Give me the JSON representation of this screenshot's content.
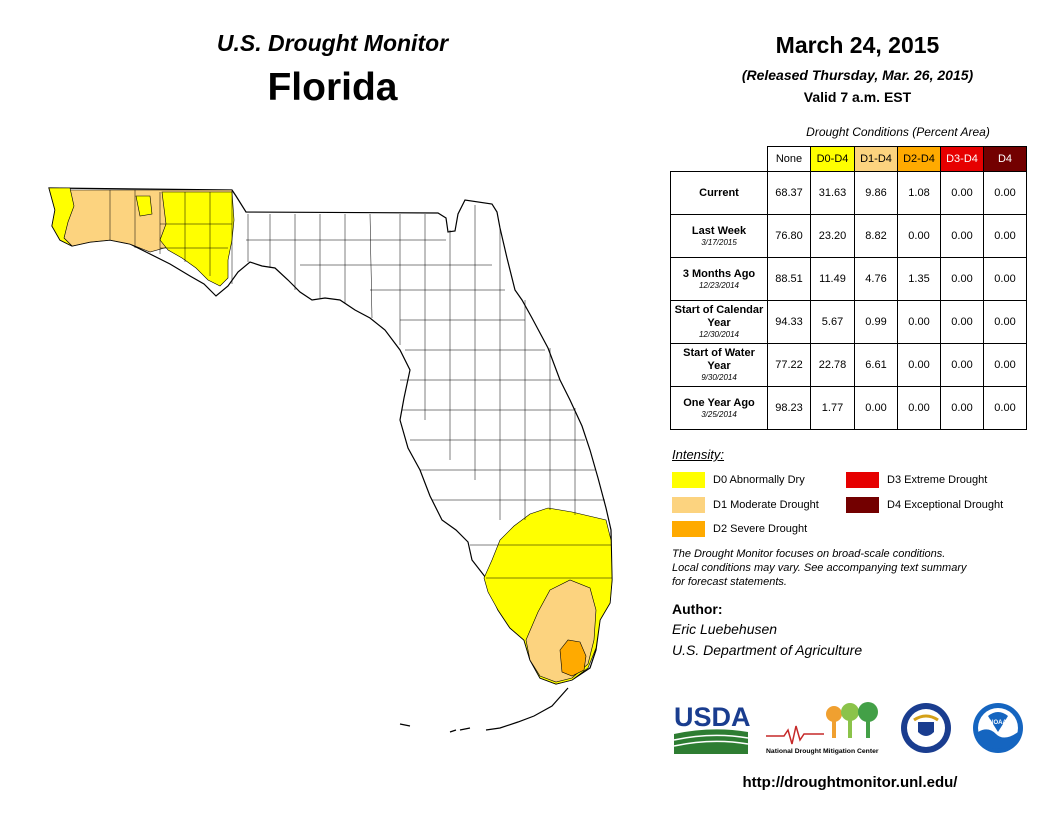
{
  "header": {
    "monitor_title": "U.S. Drought Monitor",
    "state_title": "Florida",
    "date": "March 24, 2015",
    "released": "(Released Thursday, Mar. 26, 2015)",
    "valid": "Valid 7 a.m. EST"
  },
  "table": {
    "caption": "Drought Conditions (Percent Area)",
    "columns": [
      {
        "label": "None",
        "color": "#ffffff",
        "text_color": "#000000"
      },
      {
        "label": "D0-D4",
        "color": "#ffff00",
        "text_color": "#000000"
      },
      {
        "label": "D1-D4",
        "color": "#fcd37f",
        "text_color": "#000000"
      },
      {
        "label": "D2-D4",
        "color": "#ffaa00",
        "text_color": "#000000"
      },
      {
        "label": "D3-D4",
        "color": "#e60000",
        "text_color": "#ffffff"
      },
      {
        "label": "D4",
        "color": "#730000",
        "text_color": "#ffffff"
      }
    ],
    "rows": [
      {
        "label": "Current",
        "sub": "",
        "values": [
          "68.37",
          "31.63",
          "9.86",
          "1.08",
          "0.00",
          "0.00"
        ]
      },
      {
        "label": "Last Week",
        "sub": "3/17/2015",
        "values": [
          "76.80",
          "23.20",
          "8.82",
          "0.00",
          "0.00",
          "0.00"
        ]
      },
      {
        "label": "3 Months Ago",
        "sub": "12/23/2014",
        "values": [
          "88.51",
          "11.49",
          "4.76",
          "1.35",
          "0.00",
          "0.00"
        ]
      },
      {
        "label": "Start of Calendar Year",
        "sub": "12/30/2014",
        "values": [
          "94.33",
          "5.67",
          "0.99",
          "0.00",
          "0.00",
          "0.00"
        ]
      },
      {
        "label": "Start of Water Year",
        "sub": "9/30/2014",
        "values": [
          "77.22",
          "22.78",
          "6.61",
          "0.00",
          "0.00",
          "0.00"
        ]
      },
      {
        "label": "One Year Ago",
        "sub": "3/25/2014",
        "values": [
          "98.23",
          "1.77",
          "0.00",
          "0.00",
          "0.00",
          "0.00"
        ]
      }
    ]
  },
  "legend": {
    "title": "Intensity:",
    "items": [
      {
        "label": "D0 Abnormally Dry",
        "color": "#ffff00"
      },
      {
        "label": "D1 Moderate Drought",
        "color": "#fcd37f"
      },
      {
        "label": "D2 Severe Drought",
        "color": "#ffaa00"
      },
      {
        "label": "D3 Extreme Drought",
        "color": "#e60000"
      },
      {
        "label": "D4 Exceptional Drought",
        "color": "#730000"
      }
    ]
  },
  "note": {
    "line1": "The Drought Monitor focuses on broad-scale conditions.",
    "line2": "Local conditions may vary. See accompanying text summary",
    "line3": "for forecast statements."
  },
  "author": {
    "label": "Author:",
    "name": "Eric Luebehusen",
    "org": "U.S. Department of Agriculture"
  },
  "logos": {
    "usda": "USDA",
    "ndmc": "National Drought Mitigation Center",
    "noaa": "NOAA"
  },
  "url": "http://droughtmonitor.unl.edu/"
}
